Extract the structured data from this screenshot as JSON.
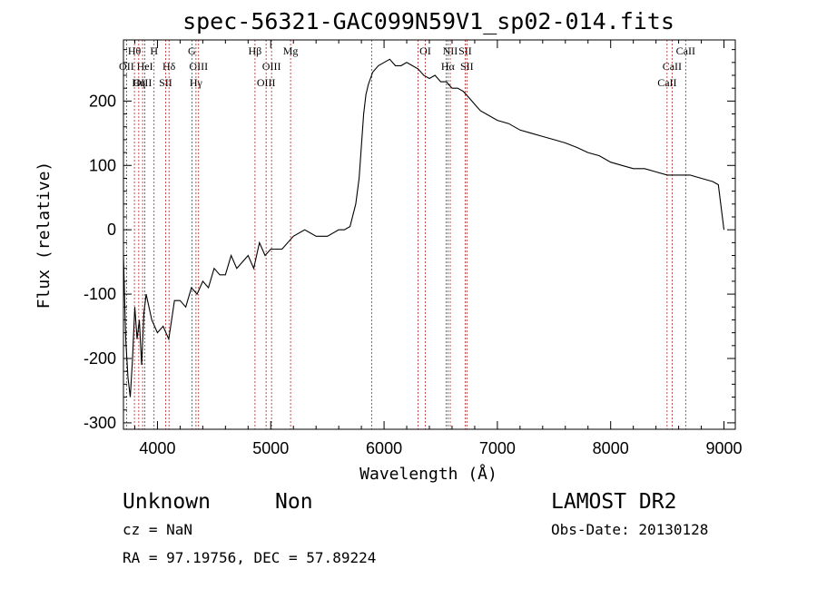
{
  "chart_data": {
    "type": "line",
    "title": "spec-56321-GAC099N59V1_sp02-014.fits",
    "xlabel": "Wavelength (Å)",
    "ylabel": "Flux (relative)",
    "xlim": [
      3700,
      9100
    ],
    "ylim": [
      -310,
      295
    ],
    "xticks": [
      4000,
      5000,
      6000,
      7000,
      8000,
      9000
    ],
    "yticks": [
      -300,
      -200,
      -100,
      0,
      100,
      200
    ],
    "grid": false,
    "series": [
      {
        "color": "#000000",
        "x": [
          3700,
          3720,
          3740,
          3760,
          3780,
          3800,
          3820,
          3840,
          3860,
          3880,
          3900,
          3950,
          4000,
          4050,
          4100,
          4150,
          4200,
          4250,
          4300,
          4350,
          4400,
          4450,
          4500,
          4550,
          4600,
          4650,
          4700,
          4750,
          4800,
          4850,
          4900,
          4950,
          5000,
          5100,
          5200,
          5300,
          5400,
          5500,
          5600,
          5650,
          5700,
          5750,
          5780,
          5800,
          5820,
          5840,
          5860,
          5880,
          5900,
          5950,
          6000,
          6050,
          6100,
          6150,
          6200,
          6250,
          6300,
          6350,
          6400,
          6450,
          6500,
          6550,
          6600,
          6650,
          6700,
          6750,
          6800,
          6850,
          6900,
          7000,
          7100,
          7200,
          7300,
          7400,
          7500,
          7600,
          7700,
          7800,
          7900,
          8000,
          8100,
          8200,
          8300,
          8400,
          8500,
          8600,
          8700,
          8800,
          8900,
          8950,
          9000
        ],
        "y": [
          -40,
          -170,
          -230,
          -260,
          -200,
          -120,
          -170,
          -140,
          -210,
          -130,
          -100,
          -140,
          -160,
          -150,
          -170,
          -110,
          -110,
          -120,
          -90,
          -100,
          -80,
          -90,
          -60,
          -70,
          -70,
          -40,
          -60,
          -50,
          -40,
          -60,
          -20,
          -40,
          -30,
          -30,
          -10,
          0,
          -10,
          -10,
          0,
          0,
          5,
          40,
          80,
          130,
          180,
          210,
          225,
          235,
          245,
          255,
          260,
          265,
          255,
          255,
          260,
          255,
          250,
          240,
          235,
          240,
          230,
          230,
          220,
          220,
          215,
          205,
          195,
          185,
          180,
          170,
          165,
          155,
          150,
          145,
          140,
          135,
          128,
          120,
          115,
          105,
          100,
          95,
          95,
          90,
          85,
          85,
          85,
          80,
          75,
          70,
          0
        ]
      }
    ],
    "line_markers": [
      {
        "label": "Hθ",
        "x": 3797,
        "row": 0
      },
      {
        "label": "OII",
        "x": 3727,
        "row": 1
      },
      {
        "label": "OIII",
        "x": 3869,
        "row": 2
      },
      {
        "label": "H",
        "x": 3970,
        "row": 0
      },
      {
        "label": "HeI",
        "x": 3889,
        "row": 1
      },
      {
        "label": "Hη",
        "x": 3835,
        "row": 2
      },
      {
        "label": "G",
        "x": 4304,
        "row": 0
      },
      {
        "label": "Hδ",
        "x": 4102,
        "row": 1
      },
      {
        "label": "SII",
        "x": 4072,
        "row": 2
      },
      {
        "label": "OIII",
        "x": 4363,
        "row": 1
      },
      {
        "label": "Hγ",
        "x": 4340,
        "row": 2
      },
      {
        "label": "Hβ",
        "x": 4861,
        "row": 0
      },
      {
        "label": "OIII",
        "x": 5007,
        "row": 1
      },
      {
        "label": "OIII",
        "x": 4959,
        "row": 2
      },
      {
        "label": "Mg",
        "x": 5175,
        "row": 0
      },
      {
        "label": "",
        "x": 5892,
        "row": 0
      },
      {
        "label": "OI",
        "x": 6364,
        "row": 0
      },
      {
        "label": "",
        "x": 6300,
        "row": 0
      },
      {
        "label": "NII",
        "x": 6584,
        "row": 0
      },
      {
        "label": "SII",
        "x": 6716,
        "row": 0
      },
      {
        "label": "Hα",
        "x": 6563,
        "row": 1
      },
      {
        "label": "SII",
        "x": 6731,
        "row": 1
      },
      {
        "label": "",
        "x": 6548,
        "row": 2
      },
      {
        "label": "CaII",
        "x": 8662,
        "row": 0
      },
      {
        "label": "CaII",
        "x": 8542,
        "row": 1
      },
      {
        "label": "CaII",
        "x": 8498,
        "row": 2
      }
    ]
  },
  "info": {
    "class": "Unknown",
    "subclass": "Non",
    "survey": "LAMOST DR2",
    "cz": "cz = NaN",
    "obs_date": "Obs-Date: 20130128",
    "radec": "RA =  97.19756, DEC =  57.89224"
  }
}
